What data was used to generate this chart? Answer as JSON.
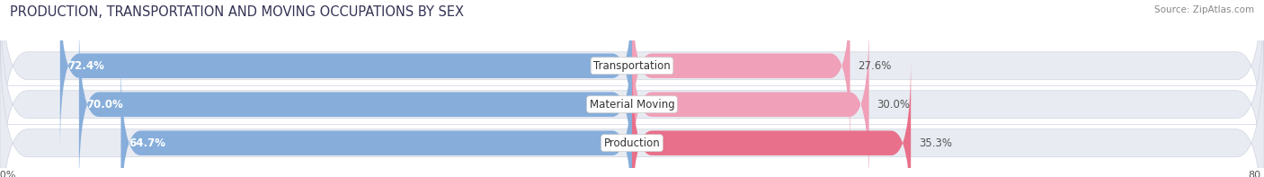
{
  "title": "PRODUCTION, TRANSPORTATION AND MOVING OCCUPATIONS BY SEX",
  "source": "Source: ZipAtlas.com",
  "categories": [
    "Transportation",
    "Material Moving",
    "Production"
  ],
  "male_values": [
    72.4,
    70.0,
    64.7
  ],
  "female_values": [
    27.6,
    30.0,
    35.3
  ],
  "male_color": "#87AEDB",
  "female_color": "#F0A0B8",
  "female_color_dark": "#E8708A",
  "bar_bg_color": "#E8EBF2",
  "bar_outline_color": "#D0D5E0",
  "xlim_abs": 80,
  "title_fontsize": 10.5,
  "label_fontsize": 8.5,
  "value_fontsize": 8.5,
  "bar_height": 0.72,
  "background_color": "#FFFFFF",
  "chart_bg_color": "#F5F6FA",
  "text_color_dark": "#444444",
  "text_color_light": "#FFFFFF"
}
